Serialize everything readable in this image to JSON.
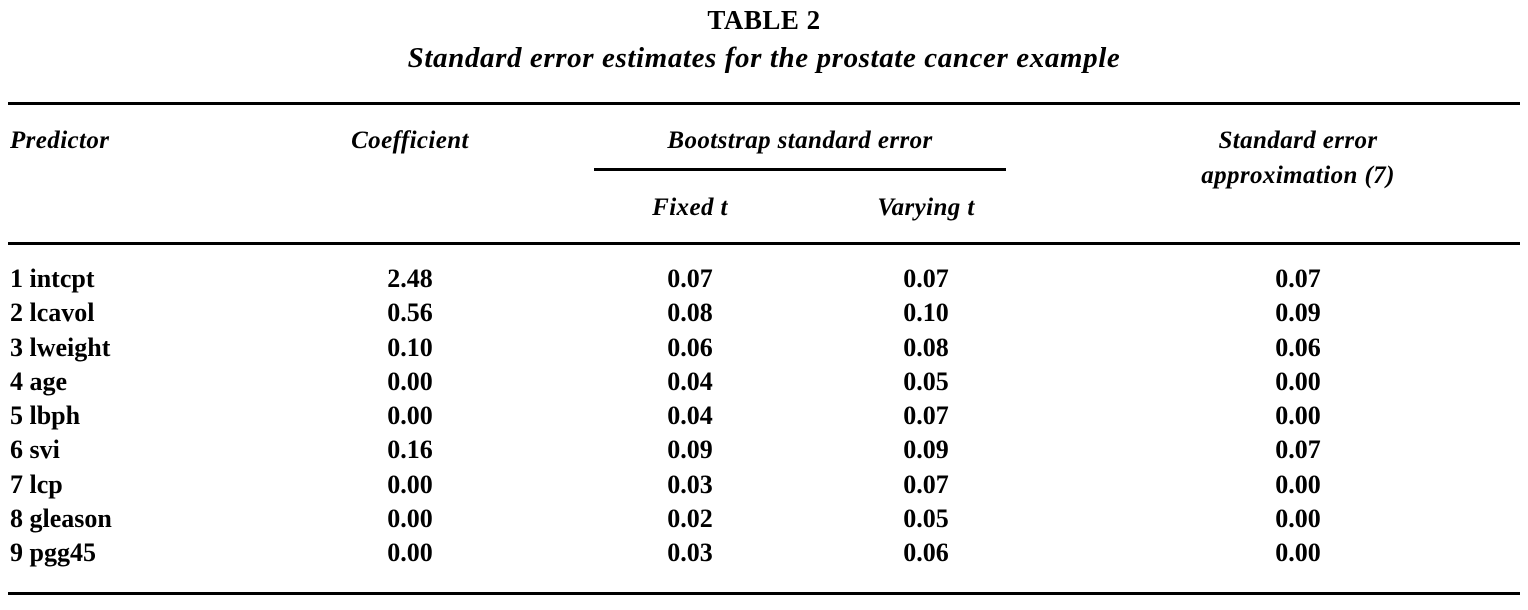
{
  "table": {
    "label": "TABLE 2",
    "caption": "Standard error estimates for the prostate cancer example",
    "headers": {
      "predictor": "Predictor",
      "coefficient": "Coefficient",
      "bootstrap_group": "Bootstrap standard error",
      "fixed_t": "Fixed t",
      "varying_t": "Varying t",
      "approx_line1": "Standard error",
      "approx_line2": "approximation (7)"
    },
    "rows": [
      {
        "predictor": "1 intcpt",
        "coefficient": "2.48",
        "fixed_t": "0.07",
        "varying_t": "0.07",
        "approx": "0.07"
      },
      {
        "predictor": "2 lcavol",
        "coefficient": "0.56",
        "fixed_t": "0.08",
        "varying_t": "0.10",
        "approx": "0.09"
      },
      {
        "predictor": "3 lweight",
        "coefficient": "0.10",
        "fixed_t": "0.06",
        "varying_t": "0.08",
        "approx": "0.06"
      },
      {
        "predictor": "4 age",
        "coefficient": "0.00",
        "fixed_t": "0.04",
        "varying_t": "0.05",
        "approx": "0.00"
      },
      {
        "predictor": "5 lbph",
        "coefficient": "0.00",
        "fixed_t": "0.04",
        "varying_t": "0.07",
        "approx": "0.00"
      },
      {
        "predictor": "6 svi",
        "coefficient": "0.16",
        "fixed_t": "0.09",
        "varying_t": "0.09",
        "approx": "0.07"
      },
      {
        "predictor": "7 lcp",
        "coefficient": "0.00",
        "fixed_t": "0.03",
        "varying_t": "0.07",
        "approx": "0.00"
      },
      {
        "predictor": "8 gleason",
        "coefficient": "0.00",
        "fixed_t": "0.02",
        "varying_t": "0.05",
        "approx": "0.00"
      },
      {
        "predictor": "9 pgg45",
        "coefficient": "0.00",
        "fixed_t": "0.03",
        "varying_t": "0.06",
        "approx": "0.00"
      }
    ]
  }
}
